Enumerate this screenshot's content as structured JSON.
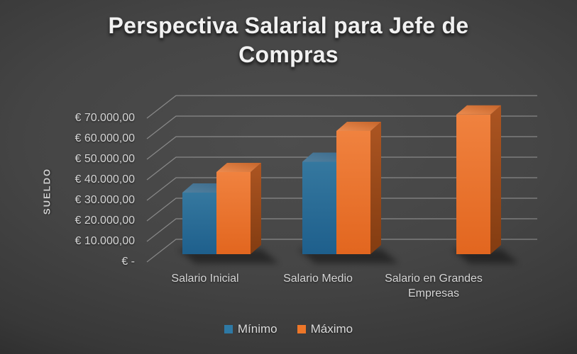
{
  "title": "Perspectiva Salarial para Jefe de Compras",
  "colors": {
    "minimo_blue": "#2E79A5",
    "maximo_orange": "#ED7628",
    "background_center": "#4D4D4D",
    "background_edge": "#191919",
    "gridline": "#C9C9C9",
    "text_light": "#D6D6D6"
  },
  "chart_data": {
    "type": "bar",
    "style": "3d-clustered-column",
    "title": "Perspectiva Salarial para Jefe de Compras",
    "categories": [
      "Salario Inicial",
      "Salario Medio",
      "Salario en Grandes Empresas"
    ],
    "series": [
      {
        "name": "Mínimo",
        "color": "#2E79A5",
        "values": [
          30000,
          45000,
          null
        ]
      },
      {
        "name": "Máximo",
        "color": "#ED7628",
        "values": [
          40000,
          60000,
          68000
        ]
      }
    ],
    "xlabel": "",
    "ylabel": "SUELDO",
    "ylim": [
      0,
      70000
    ],
    "y_tick_interval": 10000,
    "y_tick_labels": [
      "€ -",
      "€ 10.000,00",
      "€ 20.000,00",
      "€ 30.000,00",
      "€ 40.000,00",
      "€ 50.000,00",
      "€ 60.000,00",
      "€ 70.000,00"
    ],
    "grid": true,
    "legend_position": "bottom"
  }
}
